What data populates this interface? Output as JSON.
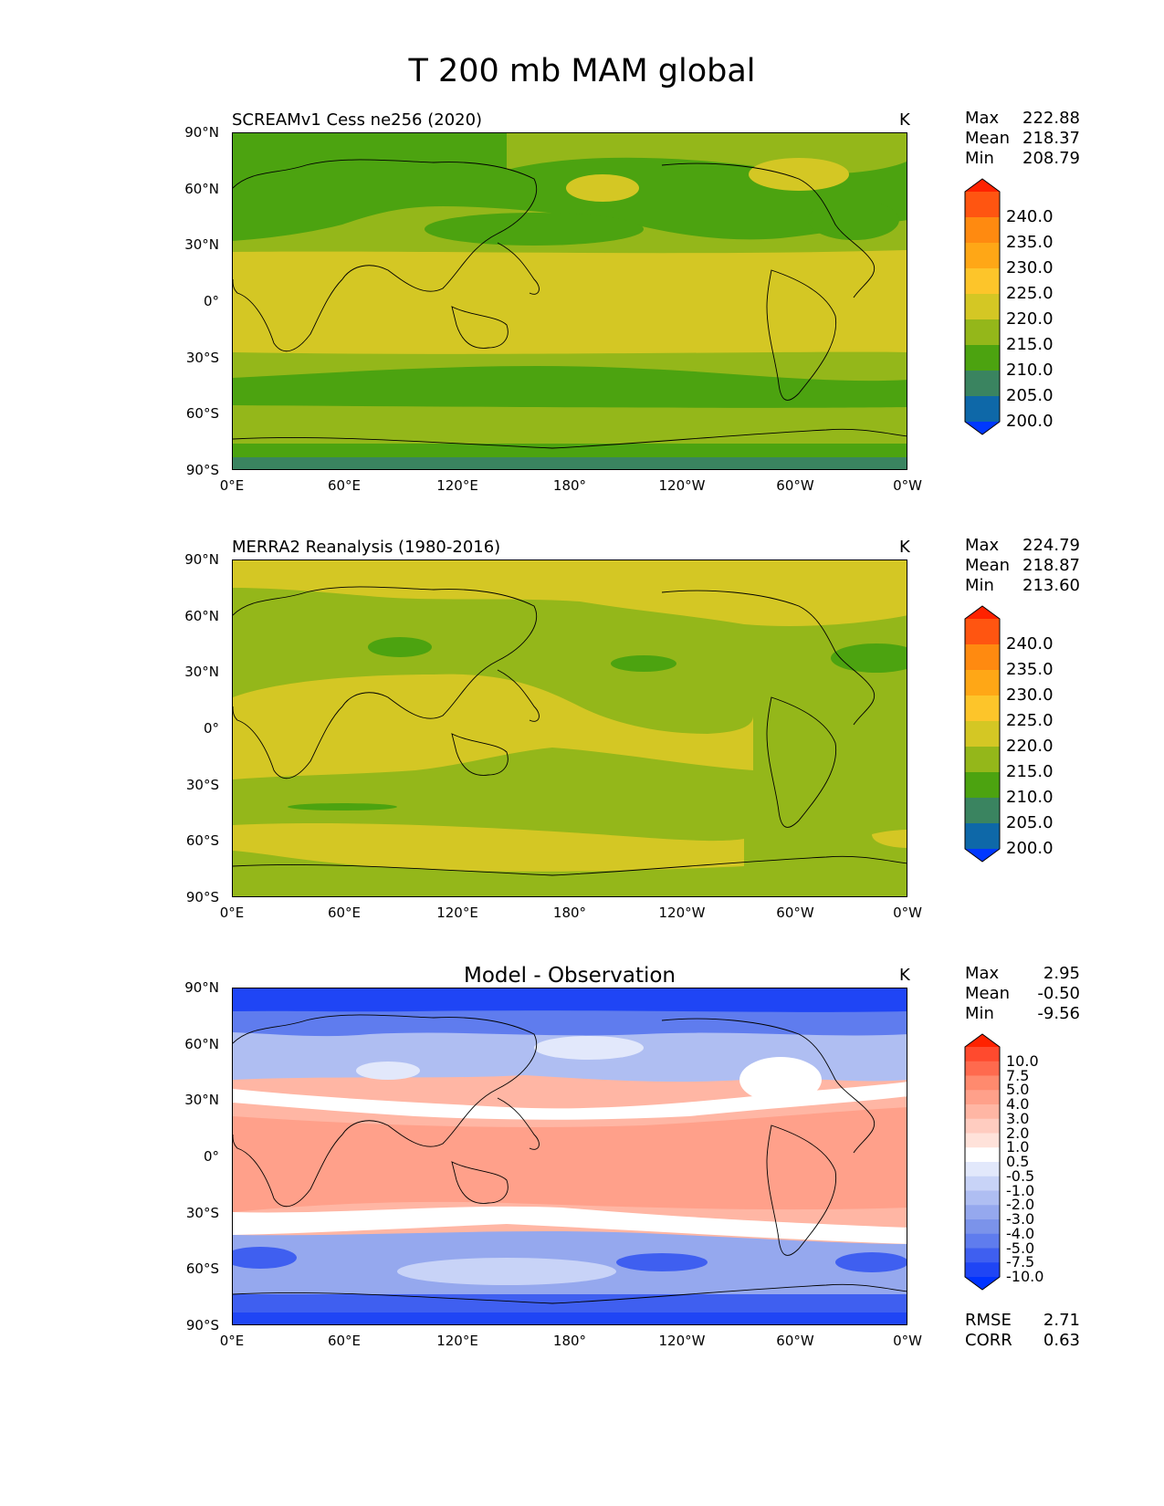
{
  "figure_title": "T 200 mb MAM global",
  "units": "K",
  "axes": {
    "lat_ticks": [
      "90°N",
      "60°N",
      "30°N",
      "0°",
      "30°S",
      "60°S",
      "90°S"
    ],
    "lon_ticks": [
      "0°E",
      "60°E",
      "120°E",
      "180°",
      "120°W",
      "60°W",
      "0°W"
    ]
  },
  "panels": [
    {
      "title": "SCREAMv1 Cess ne256 (2020)",
      "stats": {
        "max_label": "Max",
        "max": "222.88",
        "mean_label": "Mean",
        "mean": "218.37",
        "min_label": "Min",
        "min": "208.79"
      },
      "colorbar": {
        "labels": [
          "240.0",
          "235.0",
          "230.0",
          "225.0",
          "220.0",
          "215.0",
          "210.0",
          "205.0",
          "200.0"
        ],
        "colors": [
          "#ff2200",
          "#ff5511",
          "#ff8a10",
          "#ffa716",
          "#fdc52a",
          "#d4c724",
          "#94b71a",
          "#4ca310",
          "#3a8460",
          "#0e68a8",
          "#0038ff"
        ]
      }
    },
    {
      "title": "MERRA2 Reanalysis (1980-2016)",
      "stats": {
        "max_label": "Max",
        "max": "224.79",
        "mean_label": "Mean",
        "mean": "218.87",
        "min_label": "Min",
        "min": "213.60"
      },
      "colorbar": {
        "labels": [
          "240.0",
          "235.0",
          "230.0",
          "225.0",
          "220.0",
          "215.0",
          "210.0",
          "205.0",
          "200.0"
        ],
        "colors": [
          "#ff2200",
          "#ff5511",
          "#ff8a10",
          "#ffa716",
          "#fdc52a",
          "#d4c724",
          "#94b71a",
          "#4ca310",
          "#3a8460",
          "#0e68a8",
          "#0038ff"
        ]
      }
    },
    {
      "title": "Model - Observation",
      "stats": {
        "max_label": "Max",
        "max": "2.95",
        "mean_label": "Mean",
        "mean": "-0.50",
        "min_label": "Min",
        "min": "-9.56",
        "rmse_label": "RMSE",
        "rmse": "2.71",
        "corr_label": "CORR",
        "corr": "0.63"
      },
      "colorbar": {
        "labels": [
          "10.0",
          "7.5",
          "5.0",
          "4.0",
          "3.0",
          "2.0",
          "1.0",
          "0.5",
          "-0.5",
          "-1.0",
          "-2.0",
          "-3.0",
          "-4.0",
          "-5.0",
          "-7.5",
          "-10.0"
        ],
        "colors": [
          "#ff2200",
          "#ff4a2e",
          "#ff6a4e",
          "#ff8a6e",
          "#ffa08a",
          "#ffb6a4",
          "#ffccc0",
          "#ffe2da",
          "#ffffff",
          "#e2e8fb",
          "#c8d3f7",
          "#afbef2",
          "#95a8ee",
          "#7b93ea",
          "#5f7cee",
          "#3f5ff0",
          "#1f45f5",
          "#0033ff"
        ]
      }
    }
  ],
  "map_fields": {
    "panel1": {
      "base": "#94b71a",
      "bands": [
        "#3a8460",
        "#4ca310",
        "#94b71a",
        "#d4c724",
        "#94b71a",
        "#4ca310",
        "#94b71a",
        "#4ca310",
        "#94b71a"
      ],
      "arctic": "#4ca310",
      "warm_spot": "#d4c724"
    },
    "panel2": {
      "base": "#94b71a",
      "tropical": "#d4c724",
      "arctic": "#d4c724",
      "south_band": "#d4c724",
      "patches": "#4ca310"
    },
    "panel3": {
      "north": "#1f45f5",
      "mid_north": "#95a8ee",
      "white_band": "#ffffff",
      "tropics": "#ffb6a4",
      "south_white": "#ffffff",
      "south": "#7b93ea",
      "antarctic": "#1f45f5"
    }
  }
}
